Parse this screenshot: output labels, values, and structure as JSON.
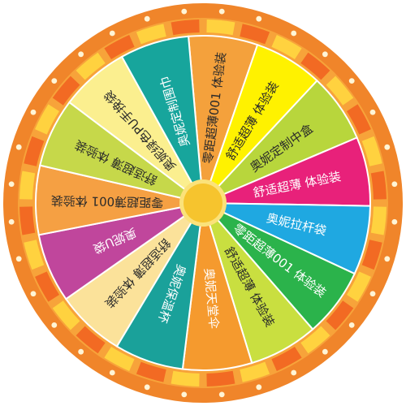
{
  "wheel": {
    "colors": {
      "outer_ring": "#f0852a",
      "inner_ring": "#f7a33a",
      "dot": "#fff5d6",
      "hub": "#f6c42e",
      "hub_ring": "#fbe27a",
      "divider": "#ffffff"
    },
    "rim_tile_colors": [
      "#ffd23f",
      "#f26a23"
    ],
    "segments": [
      {
        "label": "零距超薄001 体验装",
        "color": "#f4a13c",
        "text_light": false
      },
      {
        "label": "舒适超薄 体验装",
        "color": "#fff200",
        "text_light": false
      },
      {
        "label": "奥妮定制中盒",
        "color": "#b8d63c",
        "text_light": false
      },
      {
        "label": "舒适超薄 体验装",
        "color": "#e8217a",
        "text_light": true
      },
      {
        "label": "奥妮拉杆袋",
        "color": "#1fa8e1",
        "text_light": true
      },
      {
        "label": "零距超薄001 体验装",
        "color": "#2bb34b",
        "text_light": true
      },
      {
        "label": "舒适超薄 体验装",
        "color": "#c9df40",
        "text_light": false
      },
      {
        "label": "奥妮天堂伞",
        "color": "#f59a2e",
        "text_light": true
      },
      {
        "label": "奥妮保温杯",
        "color": "#1aa19a",
        "text_light": true
      },
      {
        "label": "舒适超薄 体验装",
        "color": "#fbe29a",
        "text_light": false
      },
      {
        "label": "奥妮U袋",
        "color": "#c0469c",
        "text_light": true
      },
      {
        "label": "零距超薄001 体验装",
        "color": "#f5a043",
        "text_light": false
      },
      {
        "label": "舒适超薄 体验装",
        "color": "#c6d84a",
        "text_light": false
      },
      {
        "label": "奥妮绿色PU手挽袋",
        "color": "#fbef8f",
        "text_light": false
      },
      {
        "label": "奥妮定制围巾",
        "color": "#17a59c",
        "text_light": true
      }
    ]
  }
}
